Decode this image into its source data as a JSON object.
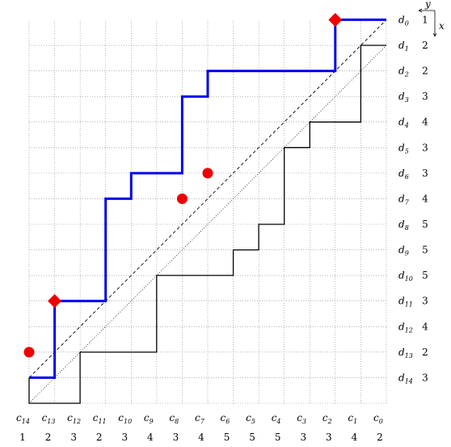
{
  "columns": [
    {
      "label": "c",
      "index": "14",
      "value": "1"
    },
    {
      "label": "c",
      "index": "13",
      "value": "2"
    },
    {
      "label": "c",
      "index": "12",
      "value": "3"
    },
    {
      "label": "c",
      "index": "11",
      "value": "2"
    },
    {
      "label": "c",
      "index": "10",
      "value": "3"
    },
    {
      "label": "c",
      "index": "9",
      "value": "4"
    },
    {
      "label": "c",
      "index": "8",
      "value": "3"
    },
    {
      "label": "c",
      "index": "7",
      "value": "4"
    },
    {
      "label": "c",
      "index": "6",
      "value": "5"
    },
    {
      "label": "c",
      "index": "5",
      "value": "5"
    },
    {
      "label": "c",
      "index": "4",
      "value": "5"
    },
    {
      "label": "c",
      "index": "3",
      "value": "3"
    },
    {
      "label": "c",
      "index": "2",
      "value": "3"
    },
    {
      "label": "c",
      "index": "1",
      "value": "4"
    },
    {
      "label": "c",
      "index": "0",
      "value": "2"
    }
  ],
  "rows": [
    {
      "label": "d",
      "index": "0",
      "value": "1"
    },
    {
      "label": "d",
      "index": "1",
      "value": "2"
    },
    {
      "label": "d",
      "index": "2",
      "value": "2"
    },
    {
      "label": "d",
      "index": "3",
      "value": "3"
    },
    {
      "label": "d",
      "index": "4",
      "value": "4"
    },
    {
      "label": "d",
      "index": "5",
      "value": "3"
    },
    {
      "label": "d",
      "index": "6",
      "value": "3"
    },
    {
      "label": "d",
      "index": "7",
      "value": "4"
    },
    {
      "label": "d",
      "index": "8",
      "value": "5"
    },
    {
      "label": "d",
      "index": "9",
      "value": "5"
    },
    {
      "label": "d",
      "index": "10",
      "value": "5"
    },
    {
      "label": "d",
      "index": "11",
      "value": "3"
    },
    {
      "label": "d",
      "index": "12",
      "value": "4"
    },
    {
      "label": "d",
      "index": "13",
      "value": "2"
    },
    {
      "label": "d",
      "index": "14",
      "value": "3"
    }
  ],
  "axes": {
    "y_label": "y",
    "x_label": "x"
  },
  "colors": {
    "blue_path": "#0000ee",
    "black_path": "#000000",
    "marker": "#ee0000",
    "grid": "#888888"
  },
  "blue_path": [
    [
      0,
      0
    ],
    [
      1,
      0
    ],
    [
      1,
      3
    ],
    [
      3,
      3
    ],
    [
      3,
      7
    ],
    [
      4,
      7
    ],
    [
      4,
      8
    ],
    [
      6,
      8
    ],
    [
      6,
      11
    ],
    [
      7,
      11
    ],
    [
      7,
      12
    ],
    [
      12,
      12
    ],
    [
      12,
      14
    ],
    [
      14,
      14
    ]
  ],
  "black_path": [
    [
      0,
      0
    ],
    [
      0,
      -1
    ],
    [
      2,
      -1
    ],
    [
      2,
      1
    ],
    [
      5,
      1
    ],
    [
      5,
      4
    ],
    [
      8,
      4
    ],
    [
      8,
      5
    ],
    [
      9,
      5
    ],
    [
      9,
      6
    ],
    [
      10,
      6
    ],
    [
      10,
      9
    ],
    [
      11,
      9
    ],
    [
      11,
      10
    ],
    [
      13,
      10
    ],
    [
      13,
      13
    ],
    [
      14,
      13
    ]
  ],
  "diamond_markers": [
    [
      1,
      3
    ],
    [
      12,
      14
    ]
  ],
  "dot_markers": [
    [
      0,
      1
    ],
    [
      6,
      7
    ],
    [
      7,
      8
    ]
  ],
  "dashed_line": [
    [
      0,
      0
    ],
    [
      14,
      14
    ]
  ],
  "dotted_line": [
    [
      0,
      -1
    ],
    [
      14,
      13
    ]
  ]
}
